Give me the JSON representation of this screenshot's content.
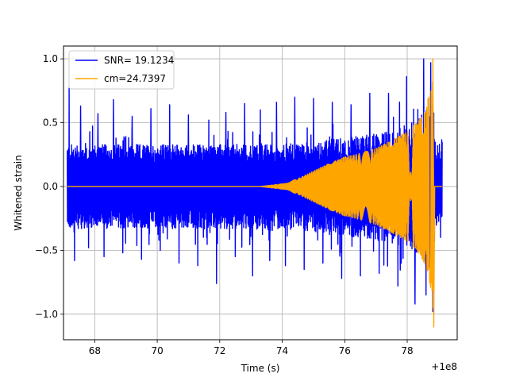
{
  "chart_data": {
    "type": "line",
    "title": "",
    "xlabel": "Time (s)",
    "ylabel": "Whitened strain",
    "x_offset_label": "+1e8",
    "xlim": [
      67.0,
      79.6
    ],
    "ylim": [
      -1.2,
      1.1
    ],
    "xticks": [
      {
        "value": 68,
        "label": "68"
      },
      {
        "value": 70,
        "label": "70"
      },
      {
        "value": 72,
        "label": "72"
      },
      {
        "value": 74,
        "label": "74"
      },
      {
        "value": 76,
        "label": "76"
      },
      {
        "value": 78,
        "label": "78"
      }
    ],
    "yticks": [
      {
        "value": -1.0,
        "label": "−1.0"
      },
      {
        "value": -0.5,
        "label": "−0.5"
      },
      {
        "value": 0.0,
        "label": "0.0"
      },
      {
        "value": 0.5,
        "label": "0.5"
      },
      {
        "value": 1.0,
        "label": "1.0"
      }
    ],
    "grid": true,
    "legend_position": "top-left",
    "series": [
      {
        "name": "SNR= 19.1234",
        "color": "#0000ff",
        "description": "noisy whitened strain",
        "x_range": [
          67.12,
          79.12
        ],
        "envelope": [
          [
            67.12,
            0.33
          ],
          [
            68.0,
            0.33
          ],
          [
            70.0,
            0.33
          ],
          [
            72.0,
            0.33
          ],
          [
            73.5,
            0.33
          ],
          [
            74.5,
            0.34
          ],
          [
            75.5,
            0.37
          ],
          [
            76.5,
            0.4
          ],
          [
            77.5,
            0.44
          ],
          [
            78.3,
            0.52
          ],
          [
            78.6,
            0.62
          ],
          [
            78.8,
            0.65
          ],
          [
            78.9,
            0.35
          ],
          [
            79.12,
            0.33
          ]
        ],
        "spikes": [
          [
            67.18,
            0.77
          ],
          [
            67.35,
            -0.58
          ],
          [
            67.55,
            0.63
          ],
          [
            67.8,
            -0.48
          ],
          [
            68.1,
            0.57
          ],
          [
            68.3,
            -0.55
          ],
          [
            68.6,
            0.68
          ],
          [
            68.9,
            -0.52
          ],
          [
            69.2,
            0.55
          ],
          [
            69.5,
            -0.57
          ],
          [
            69.8,
            0.61
          ],
          [
            70.1,
            -0.5
          ],
          [
            70.4,
            0.64
          ],
          [
            70.7,
            -0.6
          ],
          [
            71.0,
            0.56
          ],
          [
            71.3,
            -0.62
          ],
          [
            71.65,
            0.52
          ],
          [
            71.9,
            -0.76
          ],
          [
            72.2,
            0.58
          ],
          [
            72.5,
            -0.55
          ],
          [
            72.8,
            0.65
          ],
          [
            73.05,
            -0.7
          ],
          [
            73.3,
            0.6
          ],
          [
            73.6,
            -0.58
          ],
          [
            73.82,
            0.66
          ],
          [
            74.1,
            -0.62
          ],
          [
            74.4,
            0.7
          ],
          [
            74.7,
            -0.65
          ],
          [
            75.0,
            0.69
          ],
          [
            75.3,
            -0.6
          ],
          [
            75.6,
            0.66
          ],
          [
            75.9,
            -0.72
          ],
          [
            76.2,
            0.64
          ],
          [
            76.5,
            -0.7
          ],
          [
            76.8,
            0.73
          ],
          [
            77.1,
            -0.68
          ],
          [
            77.4,
            0.73
          ],
          [
            77.7,
            -0.78
          ],
          [
            77.98,
            0.86
          ],
          [
            78.25,
            -0.92
          ],
          [
            78.53,
            1.0
          ],
          [
            78.6,
            -0.85
          ],
          [
            78.75,
            0.97
          ],
          [
            78.82,
            -0.98
          ]
        ]
      },
      {
        "name": "cm=24.7397",
        "color": "#ffa500",
        "description": "chirp template",
        "x_range": [
          67.12,
          79.12
        ],
        "chirp_start": 73.3,
        "merger_time": 78.85,
        "peak_positive": 1.0,
        "peak_negative": -1.1,
        "envelope": [
          [
            73.3,
            0.0
          ],
          [
            74.0,
            0.02
          ],
          [
            74.5,
            0.06
          ],
          [
            75.0,
            0.12
          ],
          [
            75.5,
            0.18
          ],
          [
            76.0,
            0.23
          ],
          [
            76.5,
            0.26
          ],
          [
            77.0,
            0.3
          ],
          [
            77.5,
            0.36
          ],
          [
            78.0,
            0.43
          ],
          [
            78.3,
            0.5
          ],
          [
            78.6,
            0.62
          ],
          [
            78.8,
            0.85
          ],
          [
            78.85,
            1.0
          ]
        ]
      }
    ]
  }
}
